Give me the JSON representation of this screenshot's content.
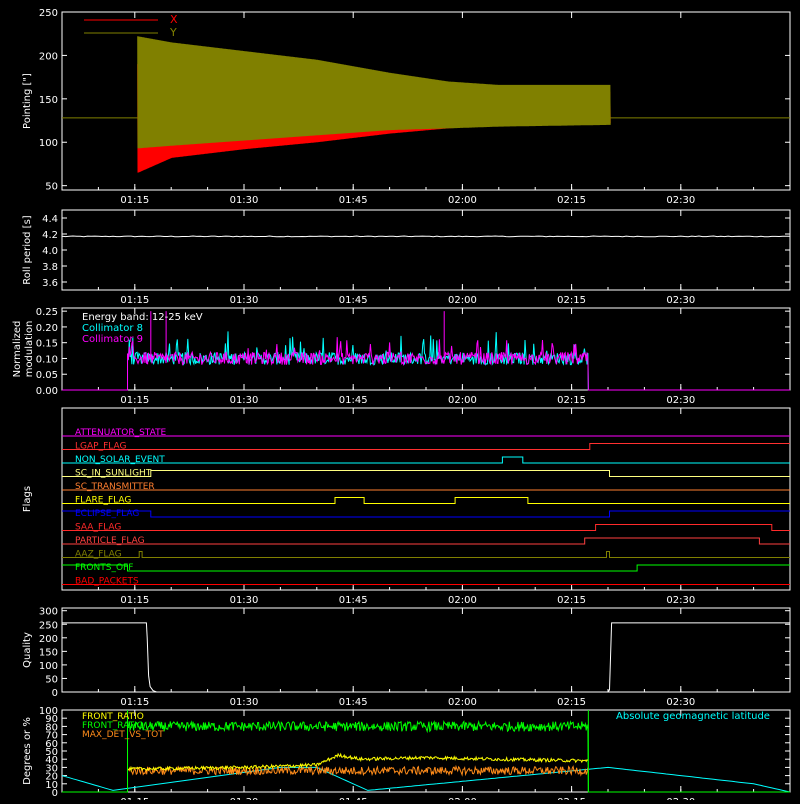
{
  "colors": {
    "background": "#000000",
    "axes": "#ffffff",
    "x": "#ff0000",
    "y": "#808000",
    "cyan": "#00ffff",
    "magenta": "#ff00ff",
    "green": "#00ff00",
    "yellow": "#ffff00",
    "orange": "#ff8c1a",
    "blue": "#0000ff",
    "olive": "#808000"
  },
  "time_axis": {
    "start_minutes": 65,
    "end_minutes": 165,
    "tick_minutes": [
      75,
      90,
      105,
      120,
      135,
      150
    ],
    "tick_labels": [
      "01:15",
      "01:30",
      "01:45",
      "02:00",
      "02:15",
      "02:30"
    ]
  },
  "chart_data": [
    {
      "id": "pointing",
      "type": "line",
      "ylabel": "Pointing [\"]",
      "ylim": [
        45,
        250
      ],
      "yticks": [
        50,
        100,
        150,
        200,
        250
      ],
      "legend": [
        {
          "name": "X",
          "color": "#ff0000"
        },
        {
          "name": "Y",
          "color": "#808000"
        }
      ],
      "baseline": 128,
      "active_range": [
        75.4,
        140.3
      ],
      "x_envelope": {
        "t": [
          75.4,
          80,
          90,
          100,
          110,
          118,
          125,
          140.3
        ],
        "upper": [
          190,
          185,
          175,
          165,
          158,
          157,
          158,
          158
        ],
        "lower": [
          65,
          82,
          92,
          100,
          110,
          116,
          120,
          122
        ]
      },
      "y_envelope": {
        "t": [
          75.4,
          80,
          90,
          100,
          110,
          118,
          125,
          140.3
        ],
        "upper": [
          222,
          215,
          205,
          195,
          180,
          170,
          166,
          166
        ],
        "lower": [
          93,
          96,
          102,
          108,
          114,
          116,
          118,
          120
        ]
      }
    },
    {
      "id": "roll_period",
      "type": "line",
      "ylabel": "Roll period [s]",
      "ylim": [
        3.5,
        4.5
      ],
      "yticks": [
        3.6,
        3.8,
        4.0,
        4.2,
        4.4
      ],
      "ytick_labels": [
        "3.6",
        "3.8",
        "4.0",
        "4.2",
        "4.4"
      ],
      "value": 4.17
    },
    {
      "id": "modulation",
      "type": "line",
      "ylabel": "Normalized modulation",
      "ylim": [
        0,
        0.26
      ],
      "yticks": [
        0,
        0.05,
        0.1,
        0.15,
        0.2,
        0.25
      ],
      "ytick_labels": [
        "0.00",
        "0.05",
        "0.10",
        "0.15",
        "0.20",
        "0.25"
      ],
      "annotations": [
        {
          "text": "Energy band: 12-25 keV",
          "color": "#ffffff"
        },
        {
          "text": "Collimator 8",
          "color": "#00ffff"
        },
        {
          "text": "Collimator 9",
          "color": "#ff00ff"
        }
      ],
      "active_range": [
        74.0,
        137.3
      ],
      "mean": 0.1,
      "spikes": [
        {
          "t": 77.2,
          "v": 0.25
        },
        {
          "t": 79.3,
          "v": 0.25
        },
        {
          "t": 117.5,
          "v": 0.25
        }
      ]
    },
    {
      "id": "flags",
      "type": "line",
      "ylabel": "Flags",
      "flags": [
        {
          "name": "ATTENUATOR_STATE",
          "color": "#ff00ff",
          "steps": [
            [
              65,
              0
            ]
          ]
        },
        {
          "name": "LGAP_FLAG",
          "color": "#ff3030",
          "steps": [
            [
              65,
              0
            ],
            [
              137.5,
              1
            ]
          ]
        },
        {
          "name": "NON_SOLAR_EVENT",
          "color": "#00ffff",
          "steps": [
            [
              65,
              0
            ],
            [
              125.5,
              1
            ],
            [
              128.3,
              0
            ]
          ]
        },
        {
          "name": "SC_IN_SUNLIGHT",
          "color": "#ffff80",
          "steps": [
            [
              65,
              0
            ],
            [
              77.2,
              1
            ],
            [
              140.2,
              0
            ]
          ]
        },
        {
          "name": "SC_TRANSMITTER",
          "color": "#ff7f30",
          "steps": [
            [
              65,
              0
            ]
          ]
        },
        {
          "name": "FLARE_FLAG",
          "color": "#ffff00",
          "steps": [
            [
              65,
              0
            ],
            [
              102.5,
              1
            ],
            [
              106.5,
              0
            ],
            [
              119.0,
              1
            ],
            [
              129.0,
              0
            ]
          ]
        },
        {
          "name": "ECLIPSE_FLAG",
          "color": "#0000ff",
          "steps": [
            [
              65,
              1
            ],
            [
              77.2,
              0
            ],
            [
              140.2,
              1
            ]
          ]
        },
        {
          "name": "SAA_FLAG",
          "color": "#ff2a2a",
          "steps": [
            [
              65,
              0
            ],
            [
              138.3,
              1
            ],
            [
              162.5,
              0
            ]
          ]
        },
        {
          "name": "PARTICLE_FLAG",
          "color": "#ff4040",
          "steps": [
            [
              65,
              0
            ],
            [
              136.8,
              1
            ],
            [
              160.8,
              0
            ]
          ]
        },
        {
          "name": "AAZ_FLAG",
          "color": "#808000",
          "steps": [
            [
              65,
              0
            ],
            [
              75.6,
              1
            ],
            [
              76.0,
              0
            ],
            [
              139.8,
              1
            ],
            [
              140.2,
              0
            ]
          ]
        },
        {
          "name": "FRONTS_OFF",
          "color": "#00ff00",
          "steps": [
            [
              65,
              1
            ],
            [
              74.0,
              0
            ],
            [
              144.0,
              1
            ]
          ]
        },
        {
          "name": "BAD_PACKETS",
          "color": "#ff0000",
          "steps": [
            [
              65,
              0
            ]
          ]
        }
      ]
    },
    {
      "id": "quality",
      "type": "line",
      "ylabel": "Quality",
      "ylim": [
        0,
        310
      ],
      "yticks": [
        0,
        50,
        100,
        150,
        200,
        250,
        300
      ],
      "ytick_labels": [
        "0",
        "50",
        "100",
        "150",
        "200",
        "250",
        "300"
      ],
      "points": [
        [
          65,
          255
        ],
        [
          76.6,
          255
        ],
        [
          76.7,
          200
        ],
        [
          76.9,
          60
        ],
        [
          77.1,
          20
        ],
        [
          77.5,
          5
        ],
        [
          78.0,
          0
        ],
        [
          140.0,
          0
        ],
        [
          140.2,
          8
        ],
        [
          140.5,
          255
        ],
        [
          165,
          255
        ]
      ]
    },
    {
      "id": "geomagnetic",
      "type": "line",
      "ylabel": "Degrees or %",
      "ylim": [
        0,
        100
      ],
      "yticks": [
        0,
        10,
        20,
        30,
        40,
        50,
        60,
        70,
        80,
        90,
        100
      ],
      "ytick_labels": [
        "0",
        "10",
        "20",
        "30",
        "40",
        "50",
        "60",
        "70",
        "80",
        "90",
        "100"
      ],
      "legend": [
        {
          "name": "FRONT_RATIO",
          "color": "#ffff00"
        },
        {
          "name": "FRONT_RATIO_",
          "color": "#00ff00"
        },
        {
          "name": "MAX_DET_VS_TOT",
          "color": "#ff8c1a"
        }
      ],
      "annotation": {
        "text": "Absolute geomagnetic latitude",
        "color": "#00ffff"
      },
      "active_range": [
        74.0,
        137.3
      ],
      "front_ratio": {
        "t": [
          74,
          90,
          100,
          103,
          106,
          115,
          125,
          137.3
        ],
        "v": [
          28,
          30,
          33,
          45,
          40,
          42,
          40,
          38
        ]
      },
      "front_ratio_2": {
        "mean": 80
      },
      "max_det_vs_tot": {
        "mean": 26
      },
      "latitude": {
        "t": [
          65,
          72,
          95,
          100,
          107,
          140,
          160,
          165
        ],
        "v": [
          20,
          2,
          30,
          30,
          2,
          30,
          10,
          0
        ]
      }
    }
  ]
}
